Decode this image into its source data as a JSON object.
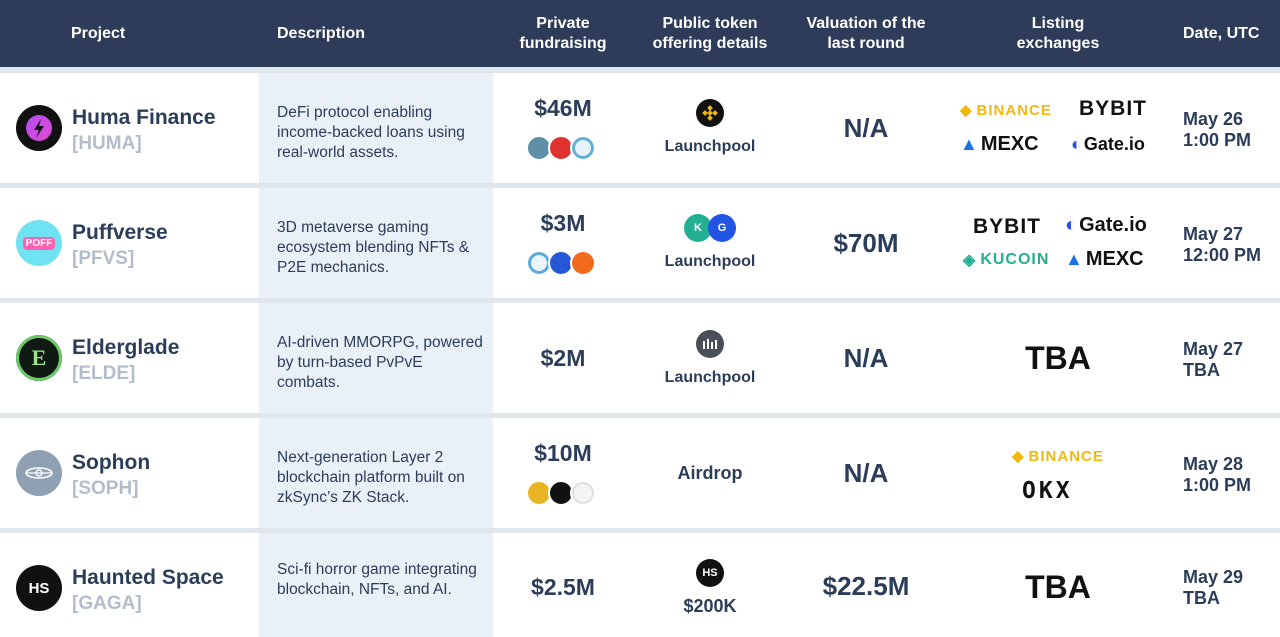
{
  "header": {
    "project": "Project",
    "description": "Description",
    "private_1": "Private",
    "private_2": "fundraising",
    "public_1": "Public token",
    "public_2": "offering details",
    "valuation_1": "Valuation of the",
    "valuation_2": "last round",
    "listing_1": "Listing",
    "listing_2": "exchanges",
    "date": "Date, UTC"
  },
  "rows": [
    {
      "name": "Huma Finance",
      "ticker": "[HUMA]",
      "logo_icon": "huma-logo-icon",
      "description": "DeFi protocol enabling income-backed loans using real-world assets.",
      "fundraising": "$46M",
      "offering": "Launchpool",
      "offering_icon": "binance-icon",
      "valuation": "N/A",
      "exchanges": [
        "BINANCE",
        "BYBIT",
        "MEXC",
        "Gate.io"
      ],
      "date_1": "May 26",
      "date_2": "1:00 PM"
    },
    {
      "name": "Puffverse",
      "ticker": "[PFVS]",
      "logo_icon": "puff-logo-icon",
      "description": "3D metaverse gaming ecosystem blending NFTs & P2E mechanics.",
      "fundraising": "$3M",
      "offering": "Launchpool",
      "offering_icon": "kucoin-gate-icon",
      "valuation": "$70M",
      "exchanges": [
        "BYBIT",
        "Gate.io",
        "KUCOIN",
        "MEXC"
      ],
      "date_1": "May 27",
      "date_2": "12:00 PM"
    },
    {
      "name": "Elderglade",
      "ticker": "[ELDE]",
      "logo_icon": "elderglade-logo-icon",
      "description": "AI-driven MMORPG, powered by turn-based PvPvE combats.",
      "fundraising": "$2M",
      "offering": "Launchpool",
      "offering_icon": "bitget-icon",
      "valuation": "N/A",
      "exchanges_tba": "TBA",
      "date_1": "May 27",
      "date_2": "TBA"
    },
    {
      "name": "Sophon",
      "ticker": "[SOPH]",
      "logo_icon": "sophon-logo-icon",
      "description": "Next-generation Layer 2 blockchain platform built on zkSync’s ZK Stack.",
      "fundraising": "$10M",
      "offering": "Airdrop",
      "valuation": "N/A",
      "exchanges": [
        "BINANCE",
        "OKX"
      ],
      "date_1": "May 28",
      "date_2": "1:00 PM"
    },
    {
      "name": "Haunted Space",
      "ticker": "[GAGA]",
      "logo_icon": "hs-logo-icon",
      "logo_text": "HS",
      "description": "Sci-fi horror game integrating blockchain, NFTs, and AI.",
      "fundraising": "$2.5M",
      "offering": "$200K",
      "offering_icon_text": "HS",
      "valuation": "$22.5M",
      "exchanges_tba": "TBA",
      "date_1": "May 29",
      "date_2": "TBA"
    }
  ],
  "colors": {
    "header_bg": "#2e3c5a",
    "row_bg": "#ffffff",
    "desc_bg": "#eaf0f7",
    "text": "#2c3d5a",
    "ticker": "#b3bdca",
    "binance": "#f0b90b",
    "kucoin": "#23af91",
    "gate": "#2354e6",
    "mexc": "#1972e2"
  }
}
